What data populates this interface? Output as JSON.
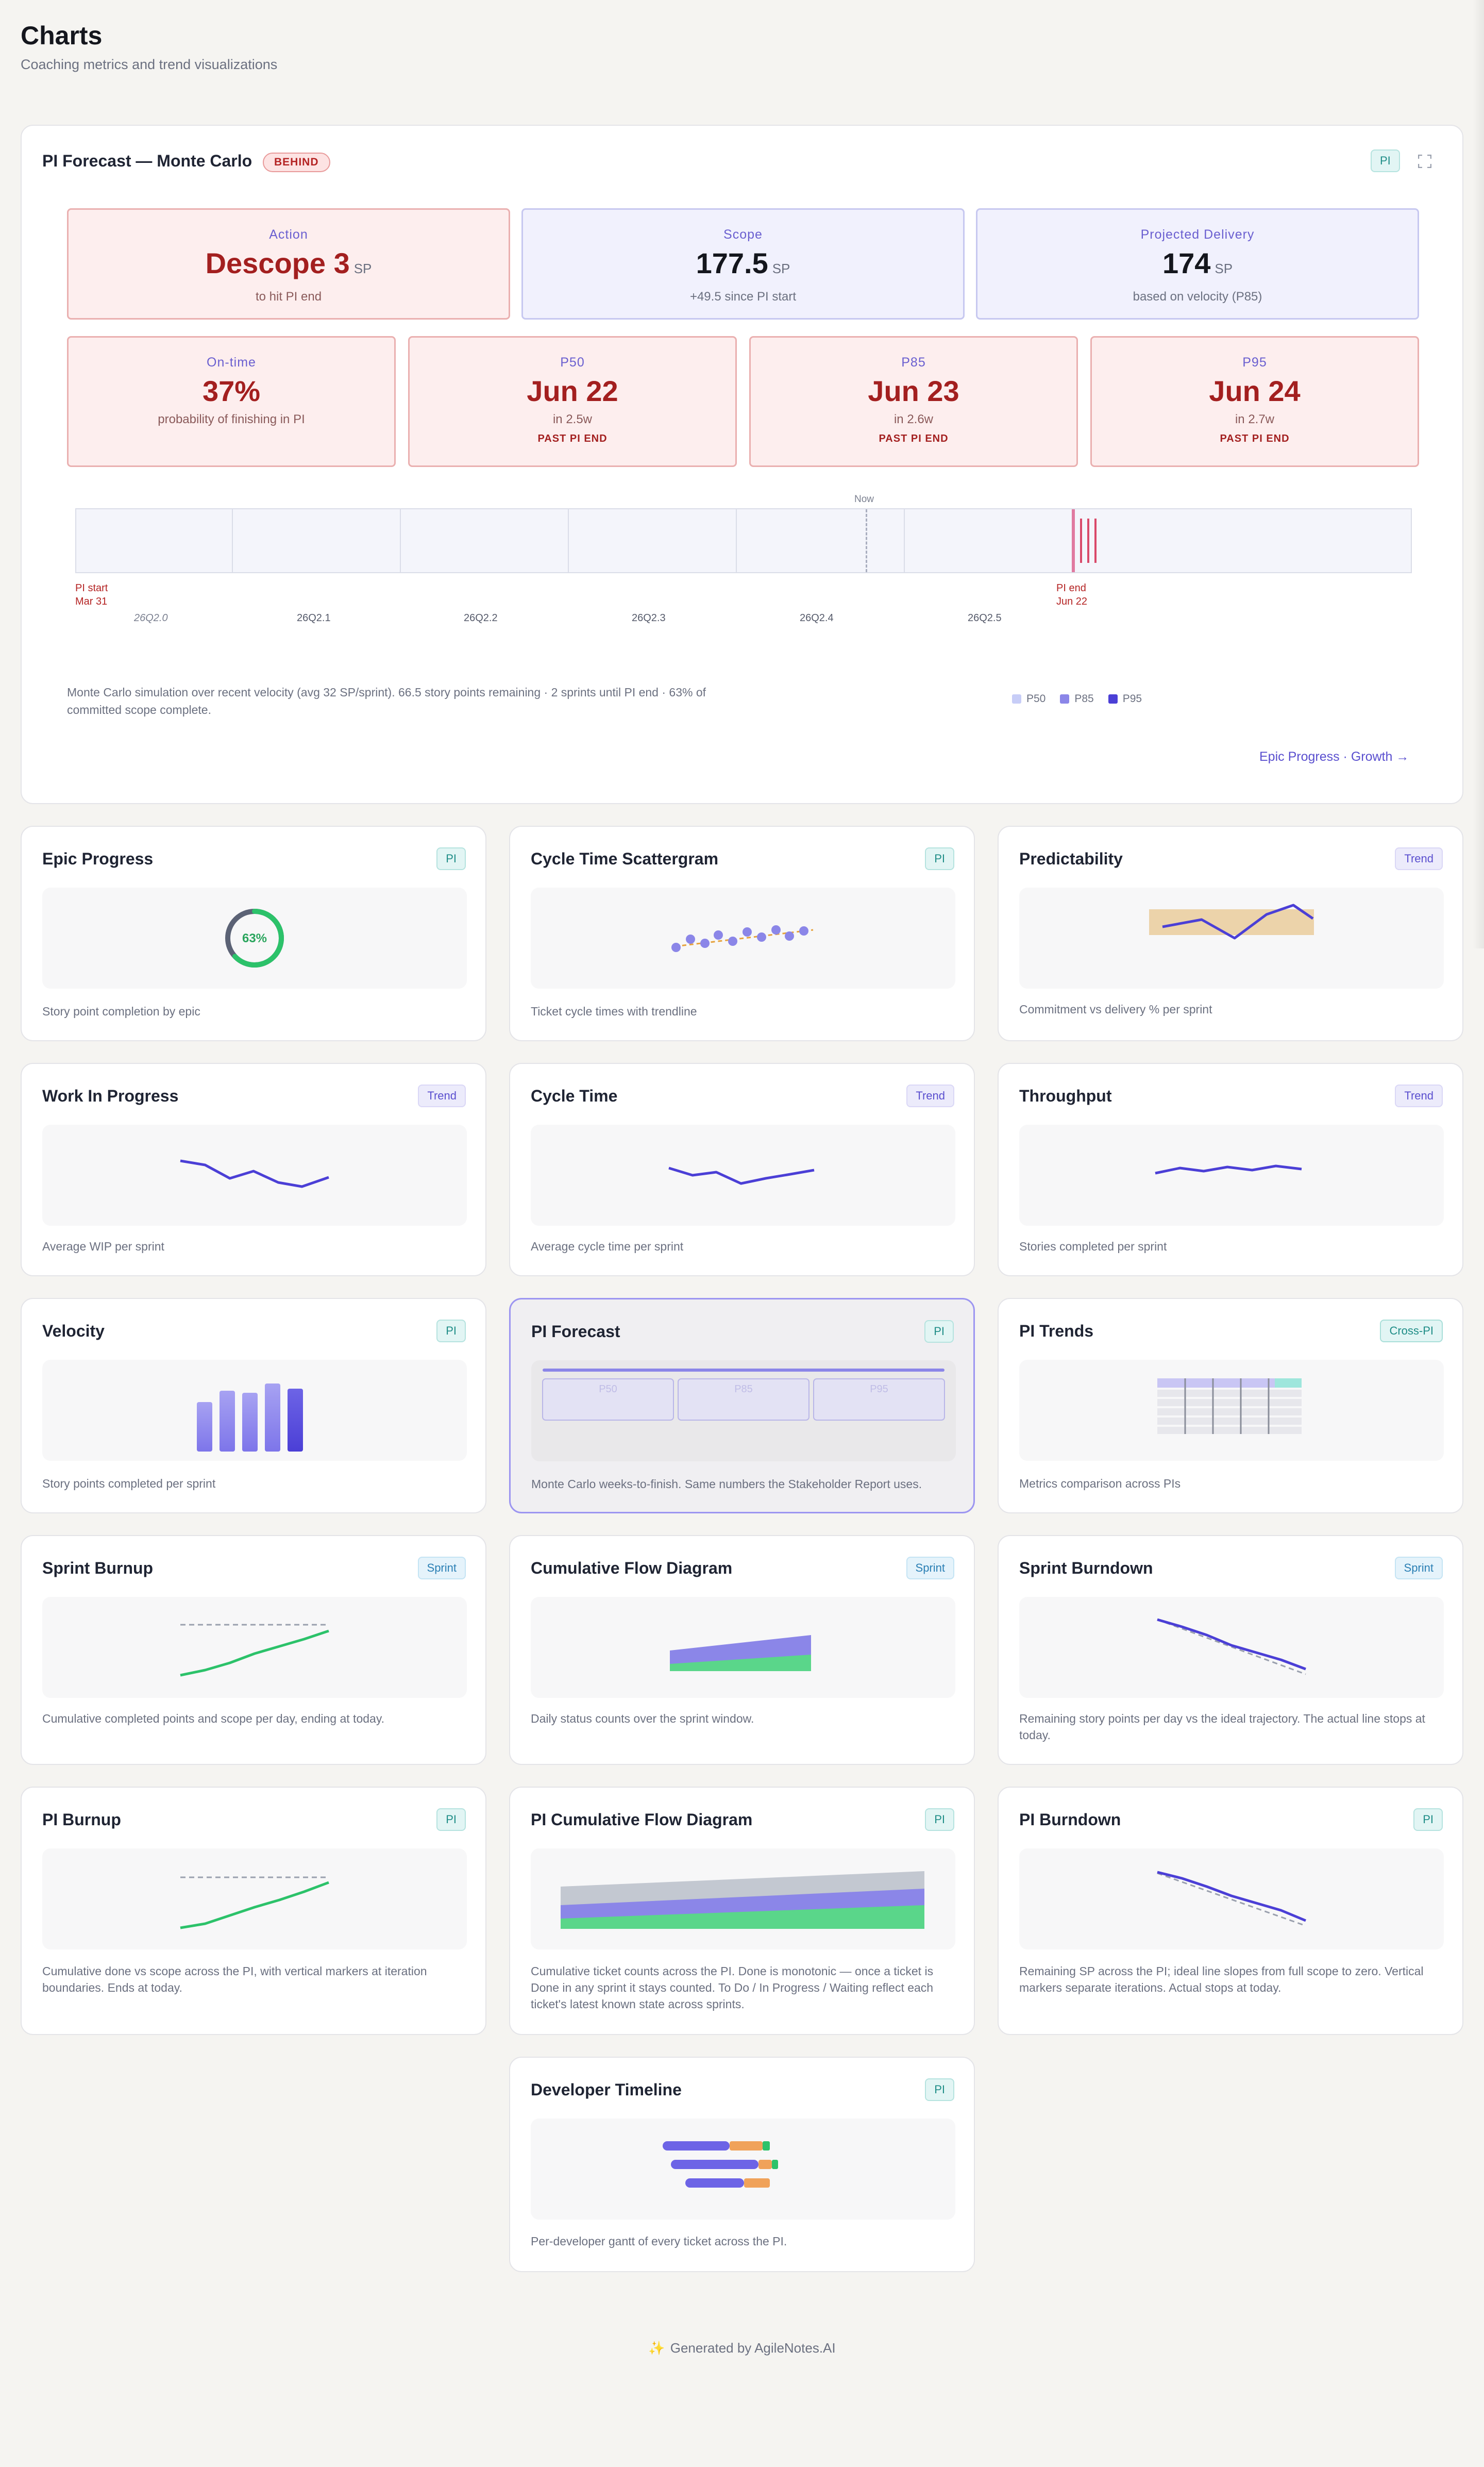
{
  "page": {
    "title": "Charts",
    "subtitle": "Coaching metrics and trend visualizations"
  },
  "forecast": {
    "title": "PI Forecast — Monte Carlo",
    "badge": "BEHIND",
    "tag": "PI",
    "expand_icon": "expand-icon",
    "action": {
      "label": "Action",
      "value": "Descope 3",
      "unit": "SP",
      "sub": "to hit PI end"
    },
    "scope": {
      "label": "Scope",
      "value": "177.5",
      "unit": "SP",
      "sub": "+49.5 since PI start"
    },
    "projected": {
      "label": "Projected Delivery",
      "value": "174",
      "unit": "SP",
      "sub": "based on velocity (P85)"
    },
    "ontime": {
      "label": "On-time",
      "value": "37%",
      "sub": "probability of finishing in PI"
    },
    "p50": {
      "label": "P50",
      "value": "Jun 22",
      "sub": "in 2.5w",
      "warn": "PAST PI END"
    },
    "p85": {
      "label": "P85",
      "value": "Jun 23",
      "sub": "in 2.6w",
      "warn": "PAST PI END"
    },
    "p95": {
      "label": "P95",
      "value": "Jun 24",
      "sub": "in 2.7w",
      "warn": "PAST PI END"
    },
    "timeline": {
      "now_label": "Now",
      "start_label": "PI start",
      "start_date": "Mar 31",
      "end_label": "PI end",
      "end_date": "Jun 22",
      "iterations": [
        "26Q2.0",
        "26Q2.1",
        "26Q2.2",
        "26Q2.3",
        "26Q2.4",
        "26Q2.5"
      ]
    },
    "note": "Monte Carlo simulation over recent velocity (avg 32 SP/sprint). 66.5 story points remaining · 2 sprints until PI end · 63% of committed scope complete.",
    "legend": [
      {
        "label": "P50",
        "color": "#c7cdf7"
      },
      {
        "label": "P85",
        "color": "#8b86e8"
      },
      {
        "label": "P95",
        "color": "#4b3fd6"
      }
    ],
    "link": "Epic Progress · Growth →"
  },
  "cards": {
    "epic_progress": {
      "title": "Epic Progress",
      "tag": "PI",
      "desc": "Story point completion by epic",
      "donut_label": "63%",
      "donut_value": 0.63
    },
    "cycle_scatter": {
      "title": "Cycle Time Scattergram",
      "tag": "PI",
      "desc": "Ticket cycle times with trendline"
    },
    "predictability": {
      "title": "Predictability",
      "tag": "Trend",
      "desc": "Commitment vs delivery % per sprint"
    },
    "wip": {
      "title": "Work In Progress",
      "tag": "Trend",
      "desc": "Average WIP per sprint"
    },
    "cycle_time": {
      "title": "Cycle Time",
      "tag": "Trend",
      "desc": "Average cycle time per sprint"
    },
    "throughput": {
      "title": "Throughput",
      "tag": "Trend",
      "desc": "Stories completed per sprint"
    },
    "velocity": {
      "title": "Velocity",
      "tag": "PI",
      "desc": "Story points completed per sprint"
    },
    "pi_forecast": {
      "title": "PI Forecast",
      "tag": "PI",
      "desc": "Monte Carlo weeks-to-finish. Same numbers the Stakeholder Report uses.",
      "boxes": [
        "P50",
        "P85",
        "P95"
      ]
    },
    "pi_trends": {
      "title": "PI Trends",
      "tag": "Cross-PI",
      "desc": "Metrics comparison across PIs"
    },
    "sprint_burnup": {
      "title": "Sprint Burnup",
      "tag": "Sprint",
      "desc": "Cumulative completed points and scope per day, ending at today."
    },
    "cfd": {
      "title": "Cumulative Flow Diagram",
      "tag": "Sprint",
      "desc": "Daily status counts over the sprint window."
    },
    "sprint_burndown": {
      "title": "Sprint Burndown",
      "tag": "Sprint",
      "desc": "Remaining story points per day vs the ideal trajectory. The actual line stops at today."
    },
    "pi_burnup": {
      "title": "PI Burnup",
      "tag": "PI",
      "desc": "Cumulative done vs scope across the PI, with vertical markers at iteration boundaries. Ends at today."
    },
    "pi_cfd": {
      "title": "PI Cumulative Flow Diagram",
      "tag": "PI",
      "desc": "Cumulative ticket counts across the PI. Done is monotonic — once a ticket is Done in any sprint it stays counted. To Do / In Progress / Waiting reflect each ticket's latest known state across sprints."
    },
    "pi_burndown": {
      "title": "PI Burndown",
      "tag": "PI",
      "desc": "Remaining SP across the PI; ideal line slopes from full scope to zero. Vertical markers separate iterations. Actual stops at today."
    },
    "dev_timeline": {
      "title": "Developer Timeline",
      "tag": "PI",
      "desc": "Per-developer gantt of every ticket across the PI."
    }
  },
  "footer": {
    "spark_icon": "sparkle-icon",
    "text": "Generated by AgileNotes.AI"
  }
}
